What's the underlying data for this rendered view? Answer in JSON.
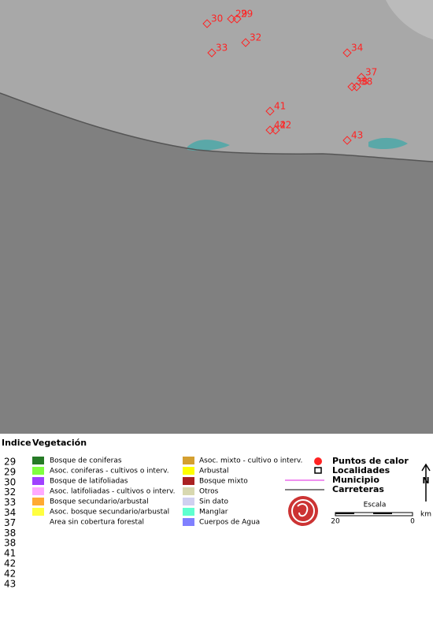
{
  "map": {
    "hotspots": [
      {
        "label": "30"
      },
      {
        "label": "29"
      },
      {
        "label": "29"
      },
      {
        "label": "32"
      },
      {
        "label": "33"
      },
      {
        "label": "34"
      },
      {
        "label": "37"
      },
      {
        "label": "38"
      },
      {
        "label": "38"
      },
      {
        "label": "41"
      },
      {
        "label": "42"
      },
      {
        "label": "42"
      },
      {
        "label": "43"
      }
    ]
  },
  "legend": {
    "index_title": "Indice",
    "vegetation_title": "Vegetación",
    "index": [
      "29",
      "29",
      "30",
      "32",
      "33",
      "34",
      "37",
      "38",
      "38",
      "41",
      "42",
      "42",
      "43"
    ],
    "vegetation": [
      {
        "label": "Bosque de coniferas",
        "color": "#267a26"
      },
      {
        "label": "Asoc. coniferas - cultivos o interv.",
        "color": "#80ff40"
      },
      {
        "label": "Bosque de latifoliadas",
        "color": "#a040ff"
      },
      {
        "label": "Asoc. latifoliadas - cultivos o interv.",
        "color": "#ffaaff"
      },
      {
        "label": "Bosque secundario/arbustal",
        "color": "#ffaa33"
      },
      {
        "label": "Asoc. bosque secundario/arbustal",
        "color": "#ffff40"
      },
      {
        "label": "Area sin cobertura forestal",
        "color": "#ffffff"
      },
      {
        "label": "Asoc. mixto - cultivo o interv.",
        "color": "#d4a030"
      },
      {
        "label": "Arbustal",
        "color": "#ffff00"
      },
      {
        "label": "Bosque mixto",
        "color": "#aa2222"
      },
      {
        "label": "Otros",
        "color": "#d8d8b0"
      },
      {
        "label": "Sin dato",
        "color": "#d0d0f0"
      },
      {
        "label": "Manglar",
        "color": "#60ffd0"
      },
      {
        "label": "Cuerpos de Agua",
        "color": "#8080ff"
      }
    ],
    "symbols": {
      "hotspots": "Puntos de calor",
      "localities": "Localidades",
      "municipality": "Municipio",
      "roads": "Carreteras"
    },
    "scale": {
      "title": "Escala",
      "left": "20",
      "right": "0",
      "unit": "km"
    },
    "north": "N"
  }
}
